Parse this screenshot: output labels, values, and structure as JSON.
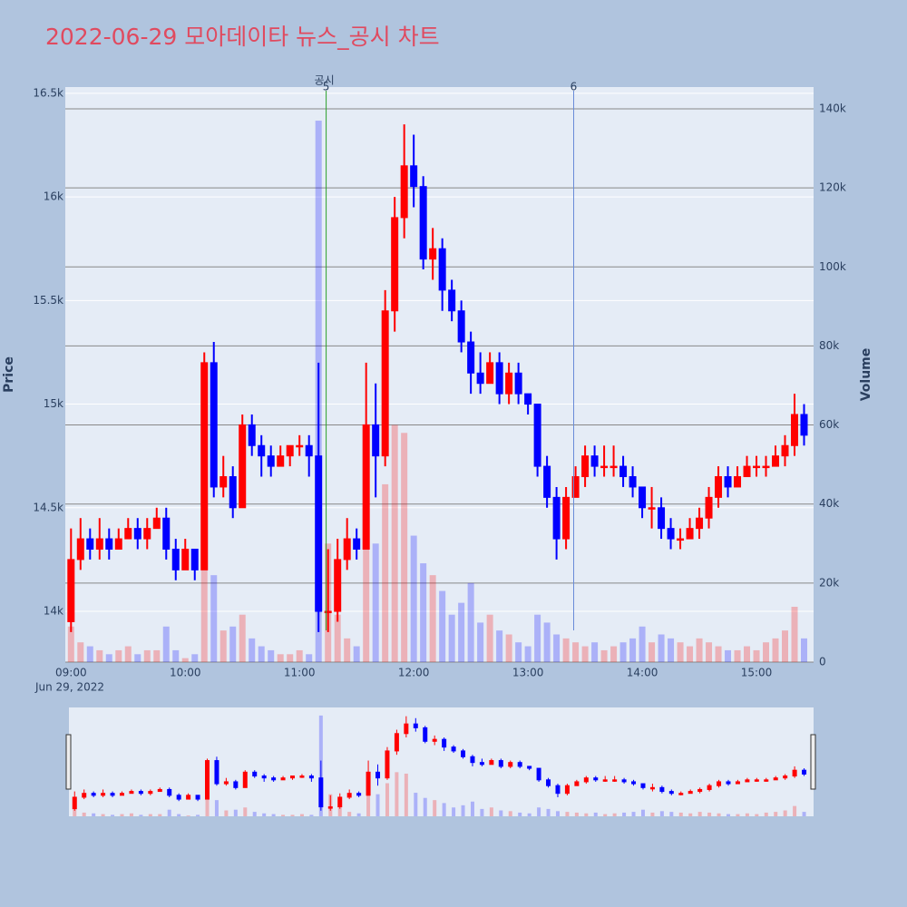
{
  "chart_data": {
    "type": "candlestick",
    "title": "2022-06-29 모아데이타 뉴스_공시 차트",
    "y_title": "Price",
    "y2_title": "Volume",
    "x_date_label": "Jun 29, 2022",
    "x": [
      "09:00",
      "09:05",
      "09:10",
      "09:15",
      "09:20",
      "09:25",
      "09:30",
      "09:35",
      "09:40",
      "09:45",
      "09:50",
      "09:55",
      "10:00",
      "10:05",
      "10:10",
      "10:15",
      "10:20",
      "10:25",
      "10:30",
      "10:35",
      "10:40",
      "10:45",
      "10:50",
      "10:55",
      "11:00",
      "11:05",
      "11:10",
      "11:15",
      "11:20",
      "11:25",
      "11:30",
      "11:35",
      "11:40",
      "11:45",
      "11:50",
      "11:55",
      "12:00",
      "12:05",
      "12:10",
      "12:15",
      "12:20",
      "12:25",
      "12:30",
      "12:35",
      "12:40",
      "12:45",
      "12:50",
      "12:55",
      "13:00",
      "13:05",
      "13:10",
      "13:15",
      "13:20",
      "13:25",
      "13:30",
      "13:35",
      "13:40",
      "13:45",
      "13:50",
      "13:55",
      "14:00",
      "14:05",
      "14:10",
      "14:15",
      "14:20",
      "14:25",
      "14:30",
      "14:35",
      "14:40",
      "14:45",
      "14:50",
      "14:55",
      "15:00",
      "15:05",
      "15:10",
      "15:15",
      "15:20",
      "15:25"
    ],
    "open": [
      13950,
      14250,
      14350,
      14300,
      14350,
      14300,
      14350,
      14400,
      14350,
      14400,
      14450,
      14300,
      14200,
      14300,
      14200,
      15200,
      14600,
      14650,
      14500,
      14900,
      14800,
      14750,
      14700,
      14750,
      14800,
      14800,
      14750,
      14000,
      14000,
      14250,
      14350,
      14300,
      14900,
      14750,
      15450,
      15900,
      16150,
      16050,
      15700,
      15750,
      15550,
      15450,
      15300,
      15150,
      15100,
      15200,
      15050,
      15150,
      15050,
      15000,
      14700,
      14550,
      14350,
      14550,
      14650,
      14750,
      14700,
      14700,
      14700,
      14650,
      14600,
      14500,
      14500,
      14400,
      14350,
      14350,
      14400,
      14450,
      14550,
      14650,
      14600,
      14650,
      14700,
      14700,
      14700,
      14750,
      14800,
      14950
    ],
    "high": [
      14400,
      14450,
      14400,
      14450,
      14400,
      14400,
      14450,
      14450,
      14450,
      14500,
      14500,
      14350,
      14350,
      14300,
      15250,
      15300,
      14750,
      14700,
      14950,
      14950,
      14850,
      14800,
      14800,
      14800,
      14850,
      14850,
      15200,
      14300,
      14350,
      14450,
      14400,
      15200,
      15100,
      15550,
      16000,
      16350,
      16300,
      16100,
      15850,
      15800,
      15600,
      15500,
      15350,
      15250,
      15250,
      15250,
      15200,
      15200,
      15050,
      15000,
      14750,
      14600,
      14600,
      14700,
      14800,
      14800,
      14800,
      14800,
      14750,
      14700,
      14600,
      14600,
      14550,
      14450,
      14400,
      14450,
      14500,
      14600,
      14700,
      14700,
      14700,
      14750,
      14750,
      14750,
      14800,
      14850,
      15050,
      15000
    ],
    "low": [
      13900,
      14200,
      14250,
      14250,
      14250,
      14300,
      14350,
      14300,
      14300,
      14400,
      14250,
      14150,
      14200,
      14150,
      14200,
      14550,
      14550,
      14450,
      14500,
      14750,
      14650,
      14650,
      14700,
      14700,
      14750,
      14650,
      13900,
      13900,
      13950,
      14200,
      14250,
      14300,
      14550,
      14700,
      15350,
      15800,
      15950,
      15650,
      15600,
      15450,
      15400,
      15250,
      15050,
      15050,
      15100,
      15000,
      15000,
      15000,
      14950,
      14650,
      14500,
      14250,
      14300,
      14550,
      14600,
      14650,
      14650,
      14650,
      14600,
      14550,
      14450,
      14400,
      14350,
      14300,
      14300,
      14350,
      14350,
      14400,
      14500,
      14550,
      14600,
      14650,
      14650,
      14650,
      14700,
      14700,
      14750,
      14800
    ],
    "close": [
      14250,
      14350,
      14300,
      14350,
      14300,
      14350,
      14400,
      14350,
      14400,
      14450,
      14300,
      14200,
      14300,
      14200,
      15200,
      14600,
      14650,
      14500,
      14900,
      14800,
      14750,
      14700,
      14750,
      14800,
      14800,
      14750,
      14000,
      14000,
      14250,
      14350,
      14300,
      14900,
      14750,
      15450,
      15900,
      16150,
      16050,
      15700,
      15750,
      15550,
      15450,
      15300,
      15150,
      15100,
      15200,
      15050,
      15150,
      15050,
      15000,
      14700,
      14550,
      14350,
      14550,
      14650,
      14750,
      14700,
      14700,
      14700,
      14650,
      14600,
      14500,
      14500,
      14400,
      14350,
      14350,
      14400,
      14450,
      14550,
      14650,
      14600,
      14650,
      14700,
      14700,
      14700,
      14750,
      14800,
      14950,
      14850
    ],
    "volume": [
      9000,
      5000,
      4000,
      3000,
      2000,
      3000,
      4000,
      2000,
      3000,
      3000,
      9000,
      3000,
      1000,
      2000,
      35000,
      22000,
      8000,
      9000,
      12000,
      6000,
      4000,
      3000,
      2000,
      2000,
      3000,
      2000,
      137000,
      30000,
      12000,
      6000,
      4000,
      40000,
      30000,
      45000,
      60000,
      58000,
      32000,
      25000,
      22000,
      18000,
      12000,
      15000,
      20000,
      10000,
      12000,
      8000,
      7000,
      5000,
      4000,
      12000,
      10000,
      7000,
      6000,
      5000,
      4000,
      5000,
      3000,
      4000,
      5000,
      6000,
      9000,
      5000,
      7000,
      6000,
      5000,
      4000,
      6000,
      5000,
      4000,
      3000,
      3000,
      4000,
      3000,
      5000,
      6000,
      8000,
      14000,
      6000
    ],
    "increasing_color": "#ff0000",
    "decreasing_color": "#0000ff",
    "xlim": [
      "08:57",
      "15:30"
    ],
    "xticks": [
      "09:00",
      "10:00",
      "11:00",
      "12:00",
      "13:00",
      "14:00",
      "15:00"
    ],
    "ylim": [
      13755,
      16530
    ],
    "yticks": [
      {
        "value": 14000,
        "label": "14k"
      },
      {
        "value": 14500,
        "label": "14.5k"
      },
      {
        "value": 15000,
        "label": "15k"
      },
      {
        "value": 15500,
        "label": "15.5k"
      },
      {
        "value": 16000,
        "label": "16k"
      },
      {
        "value": 16500,
        "label": "16.5k"
      }
    ],
    "y2lim": [
      0,
      145500
    ],
    "y2ticks": [
      0,
      {
        "value": 20000,
        "label": "20k"
      },
      {
        "value": 40000,
        "label": "40k"
      },
      {
        "value": 60000,
        "label": "60k"
      },
      {
        "value": 80000,
        "label": "80k"
      },
      {
        "value": 100000,
        "label": "100k"
      },
      {
        "value": 120000,
        "label": "120k"
      },
      {
        "value": 140000,
        "label": "140k"
      }
    ],
    "grid": true,
    "annotations": [
      {
        "x": "11:14",
        "label": "5",
        "text": "공시",
        "color": "#2ca02c"
      },
      {
        "x": "13:24",
        "label": "6",
        "color": "#6a8cd8"
      }
    ],
    "range_slider": true
  }
}
